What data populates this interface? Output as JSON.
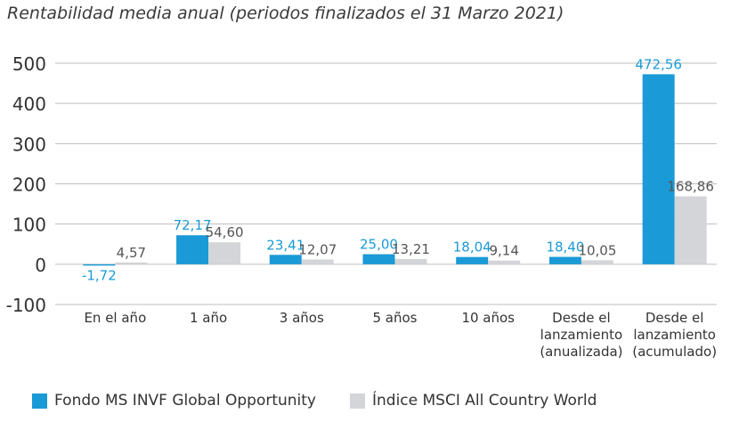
{
  "chart_data": {
    "type": "bar",
    "title": "Rentabilidad media anual (periodos finalizados el 31 Marzo 2021)",
    "categories": [
      [
        "En el año"
      ],
      [
        "1 año"
      ],
      [
        "3 años"
      ],
      [
        "5 años"
      ],
      [
        "10 años"
      ],
      [
        "Desde el",
        "lanzamiento",
        "(anualizada)"
      ],
      [
        "Desde el",
        "lanzamiento",
        "(acumulado)"
      ]
    ],
    "series": [
      {
        "name": "Fondo MS INVF Global Opportunity",
        "color": "#1a9ad6",
        "label_color": "#1a9ad6",
        "values": [
          -1.72,
          72.17,
          23.41,
          25.0,
          18.04,
          18.4,
          472.56
        ],
        "labels": [
          "-1,72",
          "72,17",
          "23,41",
          "25,00",
          "18,04",
          "18,40",
          "472,56"
        ]
      },
      {
        "name": "Índice MSCI All Country World",
        "color": "#d3d5d8",
        "label_color": "#555555",
        "values": [
          4.57,
          54.6,
          12.07,
          13.21,
          9.14,
          10.05,
          168.86
        ],
        "labels": [
          "4,57",
          "54,60",
          "12,07",
          "13,21",
          "9,14",
          "10,05",
          "168,86"
        ]
      }
    ],
    "ylim": [
      -100,
      500
    ],
    "yticks": [
      500,
      400,
      300,
      200,
      100,
      0,
      -100
    ],
    "ytick_labels": [
      "500",
      "400",
      "300",
      "200",
      "100",
      "0",
      "-100"
    ],
    "grid": true,
    "legend_position": "bottom-left"
  }
}
